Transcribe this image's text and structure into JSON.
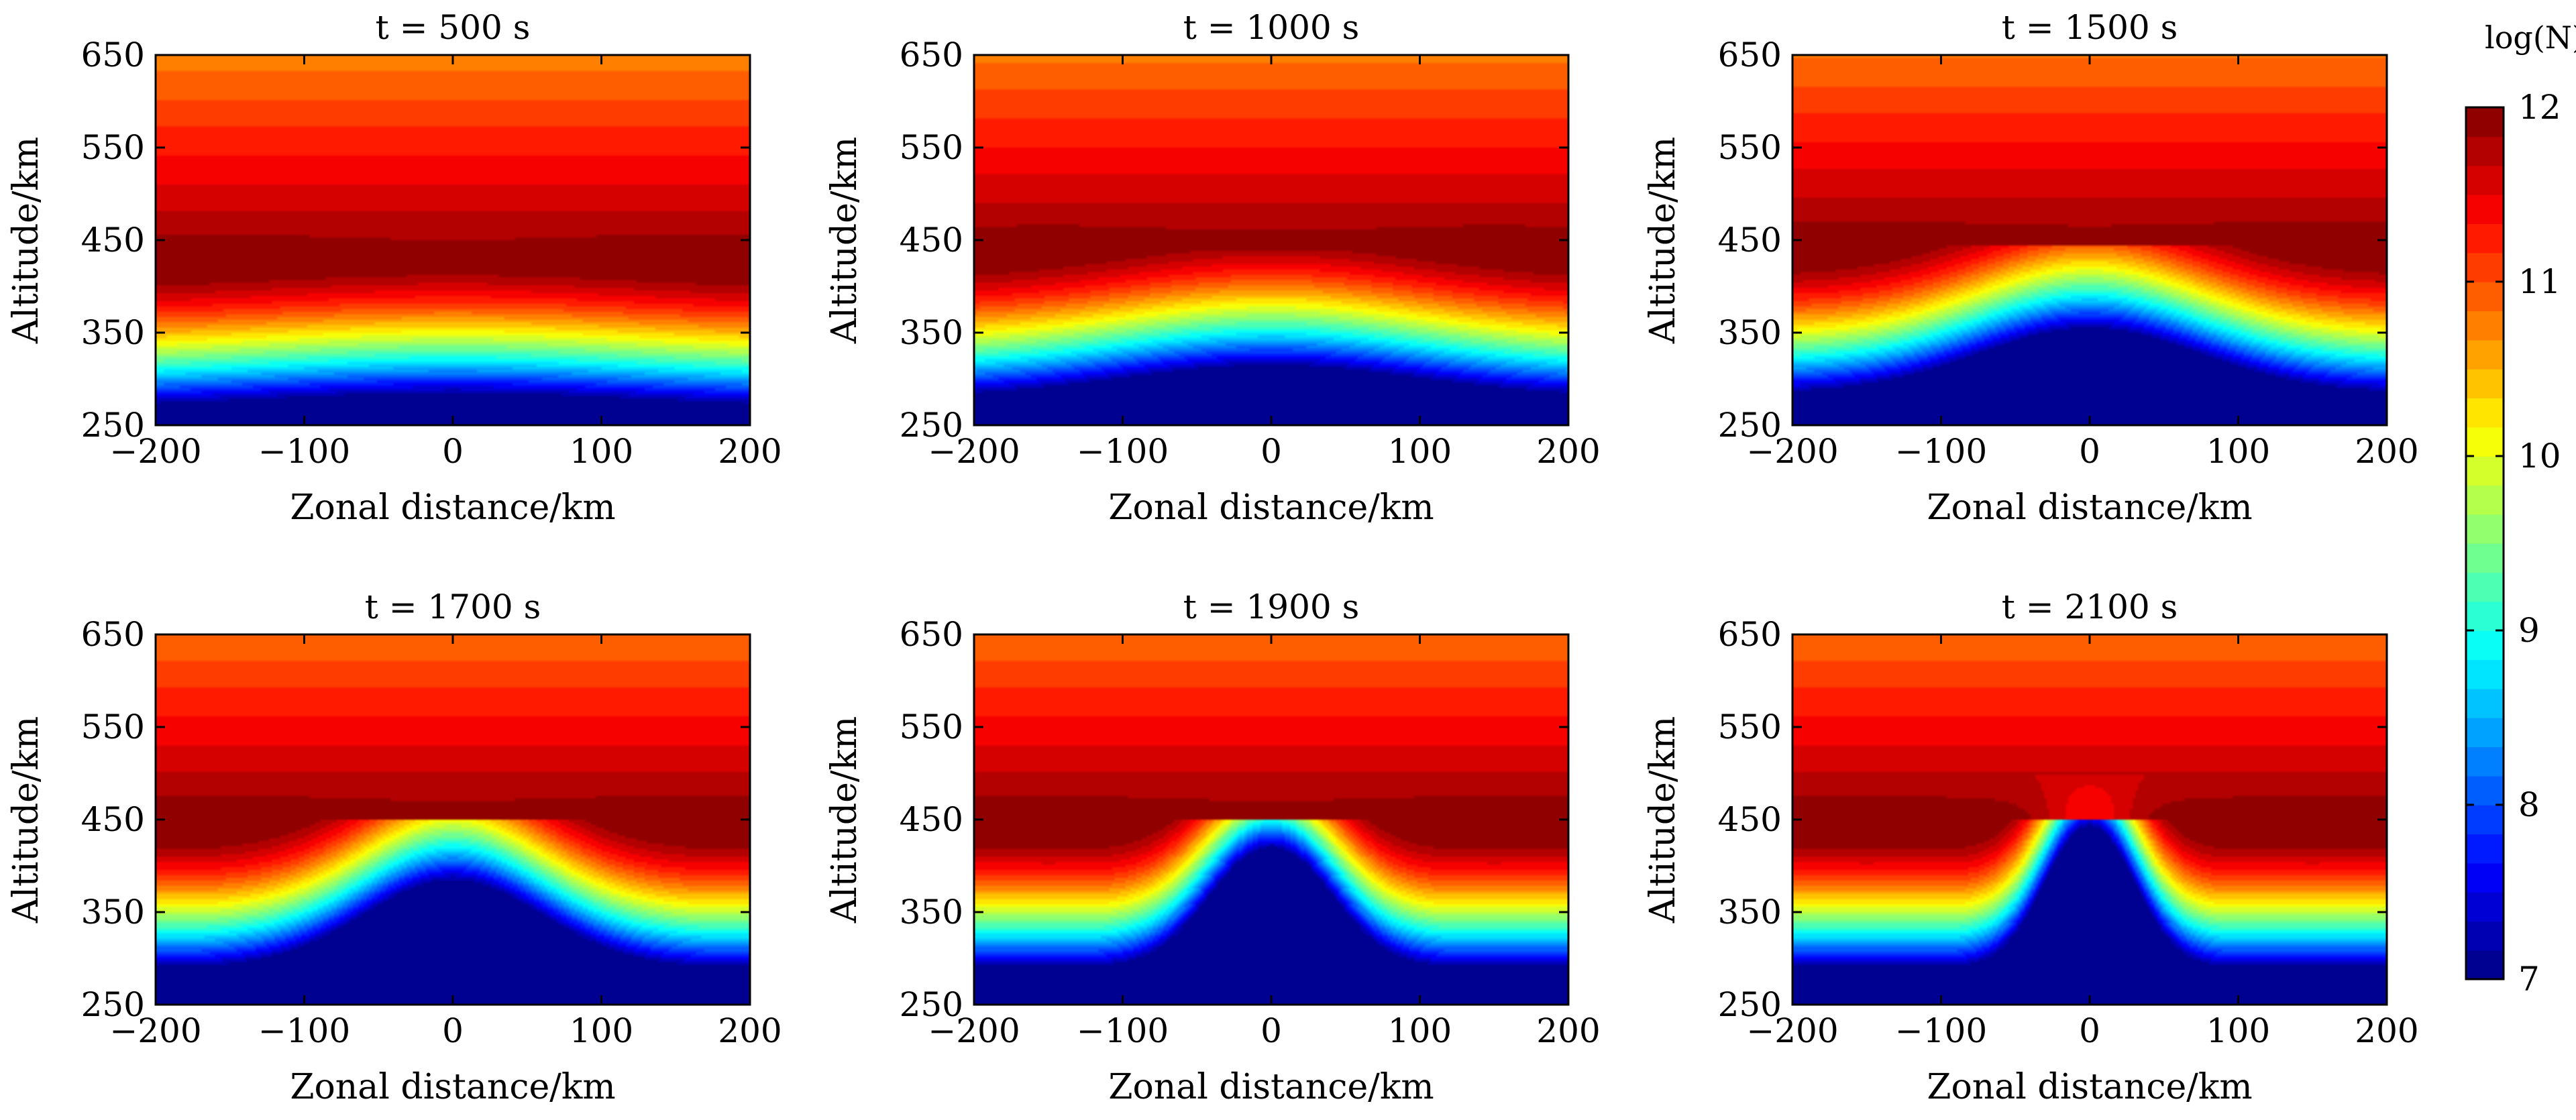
{
  "figure": {
    "colorbar": {
      "title": "log(N)",
      "ticks": [
        "7",
        "8",
        "9",
        "10",
        "11",
        "12"
      ],
      "range": [
        7,
        12
      ],
      "colormap": "jet"
    }
  },
  "chart_data": [
    {
      "type": "heatmap",
      "title": "t = 500 s",
      "t": 500,
      "xlabel": "Zonal distance/km",
      "ylabel": "Altitude/km",
      "xlim": [
        -200,
        200
      ],
      "ylim": [
        250,
        650
      ],
      "xticks": [
        "−200",
        "−100",
        "0",
        "100",
        "200"
      ],
      "yticks": [
        "250",
        "350",
        "450",
        "550",
        "650"
      ],
      "peak_altitude_km": 420,
      "bottomside_uplift_km": 15,
      "bottomside_width_km": 120,
      "plume_top_km": 0,
      "plume_width_km": 0,
      "max_logN": 12.0,
      "min_logN": 7.0
    },
    {
      "type": "heatmap",
      "title": "t = 1000 s",
      "t": 1000,
      "xlabel": "Zonal distance/km",
      "ylabel": "Altitude/km",
      "xlim": [
        -200,
        200
      ],
      "ylim": [
        250,
        650
      ],
      "xticks": [
        "−200",
        "−100",
        "0",
        "100",
        "200"
      ],
      "yticks": [
        "250",
        "350",
        "450",
        "550",
        "650"
      ],
      "peak_altitude_km": 430,
      "bottomside_uplift_km": 35,
      "bottomside_width_km": 100,
      "plume_top_km": 0,
      "plume_width_km": 0,
      "max_logN": 12.0,
      "min_logN": 7.0
    },
    {
      "type": "heatmap",
      "title": "t = 1500 s",
      "t": 1500,
      "xlabel": "Zonal distance/km",
      "ylabel": "Altitude/km",
      "xlim": [
        -200,
        200
      ],
      "ylim": [
        250,
        650
      ],
      "xticks": [
        "−200",
        "−100",
        "0",
        "100",
        "200"
      ],
      "yticks": [
        "250",
        "350",
        "450",
        "550",
        "650"
      ],
      "peak_altitude_km": 435,
      "bottomside_uplift_km": 70,
      "bottomside_width_km": 75,
      "plume_top_km": 0,
      "plume_width_km": 0,
      "max_logN": 12.0,
      "min_logN": 7.0
    },
    {
      "type": "heatmap",
      "title": "t = 1700 s",
      "t": 1700,
      "xlabel": "Zonal distance/km",
      "ylabel": "Altitude/km",
      "xlim": [
        -200,
        200
      ],
      "ylim": [
        250,
        650
      ],
      "xticks": [
        "−200",
        "−100",
        "0",
        "100",
        "200"
      ],
      "yticks": [
        "250",
        "350",
        "450",
        "550",
        "650"
      ],
      "peak_altitude_km": 440,
      "bottomside_uplift_km": 95,
      "bottomside_width_km": 60,
      "plume_top_km": 0,
      "plume_width_km": 0,
      "max_logN": 12.0,
      "min_logN": 7.0
    },
    {
      "type": "heatmap",
      "title": "t = 1900 s",
      "t": 1900,
      "xlabel": "Zonal distance/km",
      "ylabel": "Altitude/km",
      "xlim": [
        -200,
        200
      ],
      "ylim": [
        250,
        650
      ],
      "xticks": [
        "−200",
        "−100",
        "0",
        "100",
        "200"
      ],
      "yticks": [
        "250",
        "350",
        "450",
        "550",
        "650"
      ],
      "peak_altitude_km": 440,
      "bottomside_uplift_km": 120,
      "bottomside_width_km": 40,
      "plume_top_km": 450,
      "plume_width_km": 30,
      "max_logN": 12.0,
      "min_logN": 7.0
    },
    {
      "type": "heatmap",
      "title": "t = 2100 s",
      "t": 2100,
      "xlabel": "Zonal distance/km",
      "ylabel": "Altitude/km",
      "xlim": [
        -200,
        200
      ],
      "ylim": [
        250,
        650
      ],
      "xticks": [
        "−200",
        "−100",
        "0",
        "100",
        "200"
      ],
      "yticks": [
        "250",
        "350",
        "450",
        "550",
        "650"
      ],
      "peak_altitude_km": 440,
      "bottomside_uplift_km": 140,
      "bottomside_width_km": 30,
      "plume_top_km": 500,
      "plume_width_km": 22,
      "max_logN": 12.0,
      "min_logN": 7.0
    }
  ]
}
